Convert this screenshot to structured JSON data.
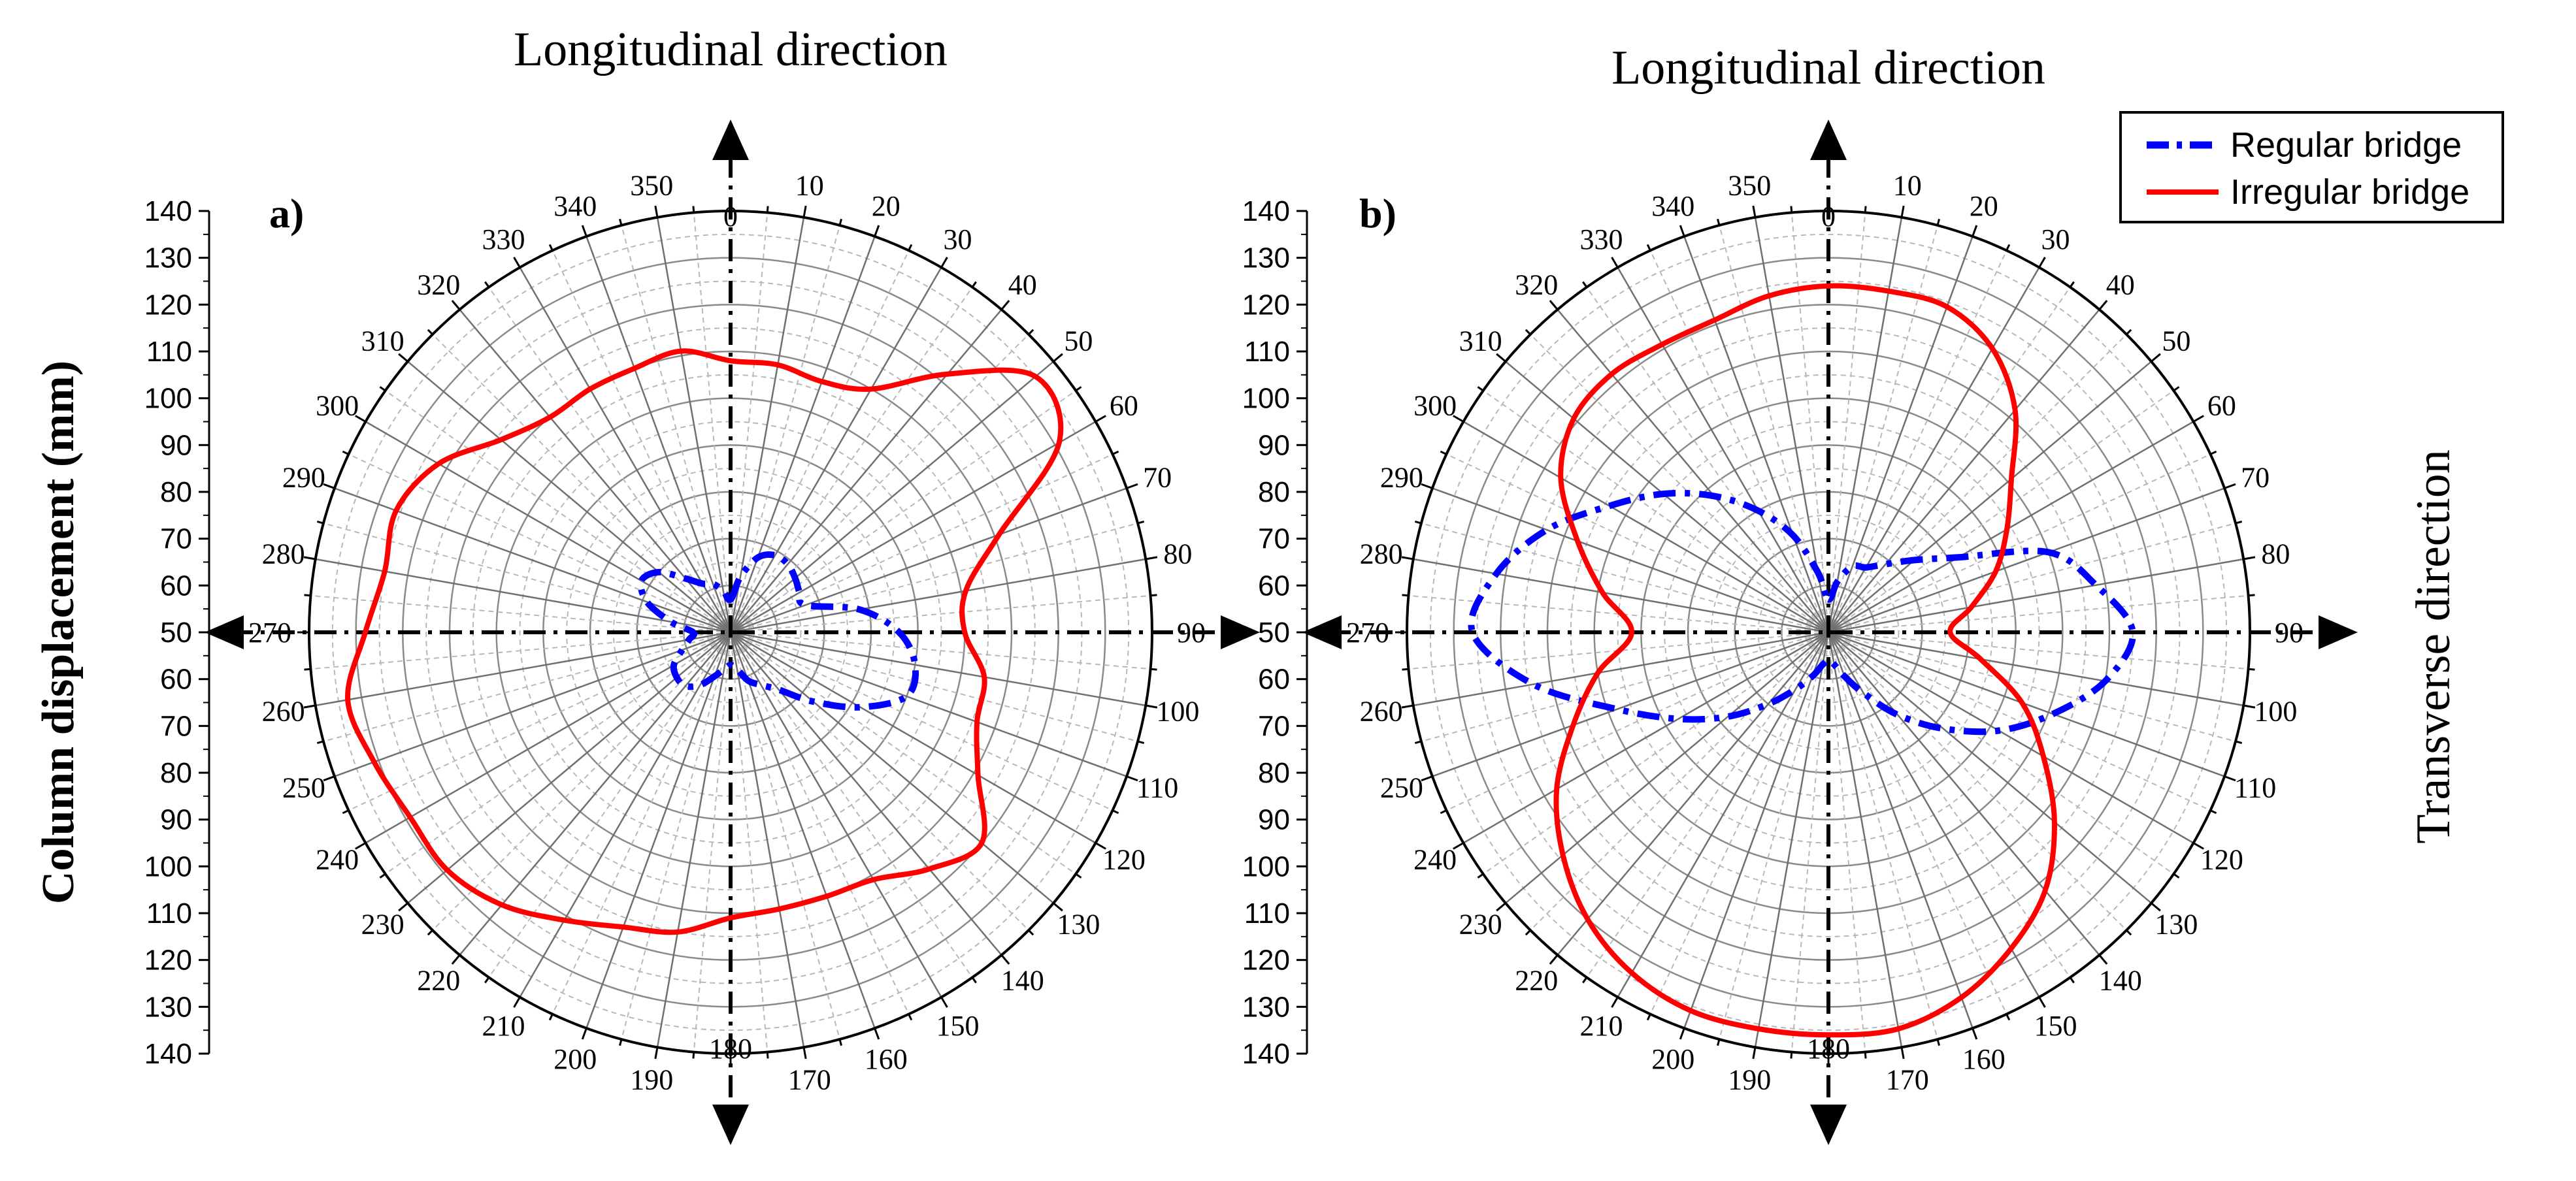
{
  "chart_data": {
    "type": "polar-line",
    "y_axis_label": "Column  displacement  (mm)",
    "x_axis_right_label": "Transverse direction",
    "radial_tick_labels": [
      "140",
      "130",
      "120",
      "110",
      "100",
      "90",
      "80",
      "70",
      "60",
      "50",
      "60",
      "70",
      "80",
      "90",
      "100",
      "110",
      "120",
      "130",
      "140"
    ],
    "angle_tick_labels": [
      "0",
      "10",
      "20",
      "30",
      "40",
      "50",
      "60",
      "70",
      "80",
      "90",
      "100",
      "110",
      "120",
      "130",
      "140",
      "150",
      "160",
      "170",
      "180",
      "190",
      "200",
      "210",
      "220",
      "230",
      "240",
      "250",
      "260",
      "270",
      "280",
      "290",
      "300",
      "310",
      "320",
      "330",
      "340",
      "350"
    ],
    "rlim": [
      50,
      140
    ],
    "units": "mm",
    "legend": {
      "position": "top-right",
      "entries": [
        {
          "label": "Regular bridge",
          "color": "#0000ff",
          "style": "dash-dot"
        },
        {
          "label": "Irregular bridge",
          "color": "#ff0000",
          "style": "solid"
        }
      ]
    },
    "panels": [
      {
        "id": "a",
        "label": "a)",
        "title": "Longitudinal direction",
        "series": [
          {
            "name": "Regular bridge",
            "angles": [
              0,
              10,
              20,
              30,
              40,
              50,
              60,
              70,
              80,
              90,
              100,
              110,
              120,
              130,
              140,
              150,
              160,
              170,
              180,
              190,
              200,
              210,
              220,
              230,
              240,
              250,
              260,
              270,
              280,
              290,
              300,
              310,
              320,
              330,
              340,
              350,
              360
            ],
            "values": [
              57,
              62,
              67,
              69,
              69,
              68,
              67,
              67,
              78,
              86,
              90,
              90,
              82,
              73,
              66,
              63,
              61,
              58,
              57,
              58,
              60,
              63,
              65,
              65,
              64,
              61,
              59,
              58,
              63,
              69,
              72,
              70,
              65,
              62,
              61,
              59,
              57
            ]
          },
          {
            "name": "Irregular bridge",
            "angles": [
              0,
              10,
              20,
              30,
              40,
              50,
              60,
              70,
              80,
              90,
              100,
              110,
              120,
              130,
              140,
              150,
              160,
              170,
              180,
              190,
              200,
              210,
              220,
              230,
              240,
              250,
              260,
              270,
              280,
              290,
              300,
              310,
              320,
              330,
              340,
              350,
              360
            ],
            "values": [
              108,
              108,
              107,
              110,
              122,
              135,
              131,
              111,
              101,
              100,
              105,
              106,
              111,
              120,
              116,
              111,
              110,
              110,
              111,
              115,
              117,
              121,
              126,
              129,
              129,
              131,
              133,
              128,
              125,
              126,
              122,
              114,
              110,
              110,
              110,
              111,
              108
            ]
          }
        ]
      },
      {
        "id": "b",
        "label": "b)",
        "title": "Longitudinal direction",
        "series": [
          {
            "name": "Regular bridge",
            "angles": [
              0,
              10,
              20,
              30,
              40,
              50,
              60,
              70,
              80,
              90,
              100,
              110,
              120,
              130,
              140,
              150,
              160,
              170,
              180,
              190,
              200,
              210,
              220,
              230,
              240,
              250,
              260,
              270,
              280,
              290,
              300,
              310,
              320,
              330,
              340,
              350,
              360
            ],
            "values": [
              57,
              61,
              65,
              66,
              69,
              74,
              82,
              100,
              108,
              115,
              110,
              101,
              92,
              82,
              73,
              65,
              60,
              57,
              56,
              57,
              60,
              64,
              70,
              78,
              87,
              98,
              114,
              126,
              122,
              114,
              104,
              96,
              88,
              80,
              72,
              63,
              57
            ]
          },
          {
            "name": "Irregular bridge",
            "angles": [
              0,
              10,
              20,
              30,
              40,
              50,
              60,
              70,
              80,
              90,
              100,
              110,
              120,
              130,
              140,
              150,
              160,
              170,
              180,
              190,
              200,
              210,
              220,
              230,
              240,
              250,
              260,
              270,
              280,
              290,
              300,
              310,
              320,
              330,
              340,
              350,
              360
            ],
            "values": [
              124,
              124,
              124,
              120,
              112,
              101,
              94,
              88,
              81,
              76,
              83,
              94,
              103,
              113,
              122,
              128,
              133,
              136,
              136,
              136,
              136,
              134,
              130,
              124,
              117,
              108,
              100,
              92,
              99,
              107,
              116,
              121,
              122,
              121,
              121,
              123,
              124
            ]
          }
        ]
      }
    ]
  }
}
